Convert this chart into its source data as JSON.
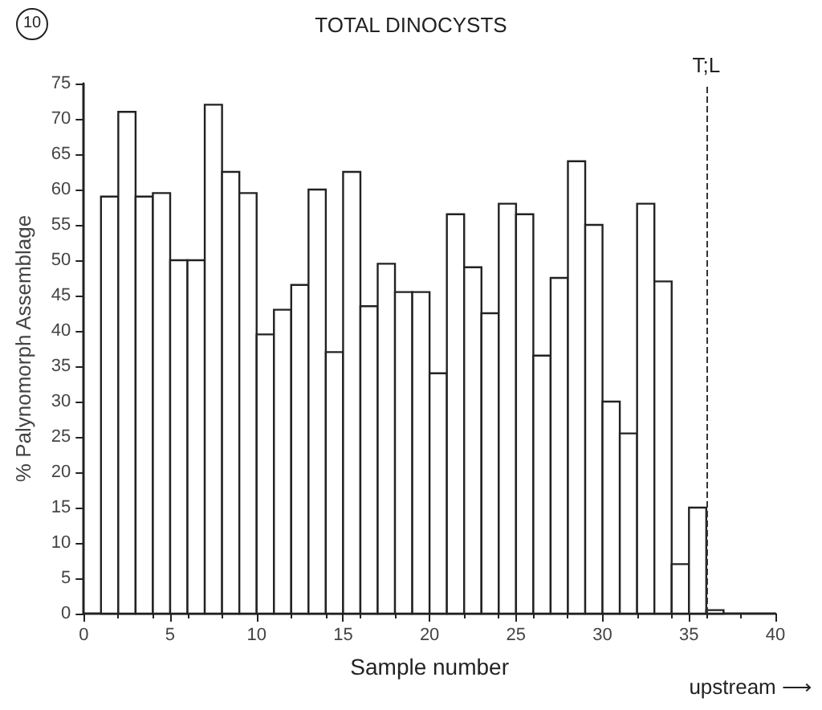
{
  "chart_data": {
    "type": "histogram",
    "title": "TOTAL DINOCYSTS",
    "xlabel": "Sample number",
    "ylabel": "% Palynomorph Assemblage",
    "bins": [
      1,
      2,
      3,
      4,
      5,
      6,
      7,
      8,
      9,
      10,
      11,
      12,
      13,
      14,
      15,
      16,
      17,
      18,
      19,
      20,
      21,
      22,
      23,
      24,
      25,
      26,
      27,
      28,
      29,
      30,
      31,
      32,
      33,
      34,
      35,
      36,
      37
    ],
    "values": [
      59,
      71,
      59,
      59.5,
      50,
      50,
      72,
      62.5,
      59.5,
      39.5,
      43,
      46.5,
      60,
      37,
      62.5,
      43.5,
      49.5,
      45.5,
      45.5,
      34,
      56.5,
      49,
      42.5,
      58,
      56.5,
      36.5,
      47.5,
      64,
      55,
      30,
      25.5,
      58,
      47,
      7,
      15,
      0.5
    ],
    "color": "#ffffff",
    "xlim": [
      0,
      40
    ],
    "xticks": [
      0,
      5,
      10,
      15,
      20,
      25,
      30,
      35,
      40
    ],
    "ylim": [
      0,
      75
    ],
    "yticks": [
      0,
      5,
      10,
      15,
      20,
      25,
      30,
      35,
      40,
      45,
      50,
      55,
      60,
      65,
      70,
      75
    ],
    "ref_lines": [
      {
        "axis": "x",
        "value": 36,
        "label": "T;L",
        "line_style": "dashed",
        "color": "#333333"
      }
    ],
    "annotations": [
      "10",
      "upstream ⟶"
    ]
  }
}
